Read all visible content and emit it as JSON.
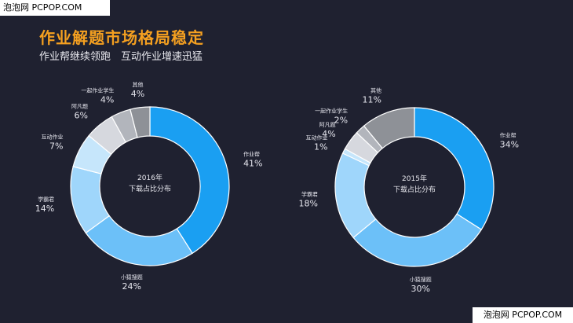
{
  "watermark_top": "泡泡网 PCPOP.COM",
  "watermark_bottom": "泡泡网 PCPOP.COM",
  "title": "作业解题市场格局稳定",
  "subtitle": "作业帮继续领跑　互动作业增速迅猛",
  "colors": {
    "background": "#1f2130",
    "title": "#f5a020"
  },
  "chart_data": [
    {
      "type": "pie",
      "variant": "donut",
      "center_label": [
        "2016年",
        "下载占比分布"
      ],
      "slices": [
        {
          "label": "作业帮",
          "value": 41,
          "display": "41%",
          "color": "#1a9ff2"
        },
        {
          "label": "小猿搜题",
          "value": 24,
          "display": "24%",
          "color": "#6cc0f8"
        },
        {
          "label": "学霸君",
          "value": 14,
          "display": "14%",
          "color": "#9fd6fb"
        },
        {
          "label": "互动作业",
          "value": 7,
          "display": "7%",
          "color": "#c6e6fb"
        },
        {
          "label": "阿凡题",
          "value": 6,
          "display": "6%",
          "color": "#d6d8de"
        },
        {
          "label": "一起作业学生",
          "value": 4,
          "display": "4%",
          "color": "#b2b5bc"
        },
        {
          "label": "其他",
          "value": 4,
          "display": "4%",
          "color": "#8e9197"
        }
      ]
    },
    {
      "type": "pie",
      "variant": "donut",
      "center_label": [
        "2015年",
        "下载占比分布"
      ],
      "slices": [
        {
          "label": "作业帮",
          "value": 34,
          "display": "34%",
          "color": "#1a9ff2"
        },
        {
          "label": "小猿搜题",
          "value": 30,
          "display": "30%",
          "color": "#6cc0f8"
        },
        {
          "label": "学霸君",
          "value": 18,
          "display": "18%",
          "color": "#9fd6fb"
        },
        {
          "label": "互动作业",
          "value": 1,
          "display": "1%",
          "color": "#c6e6fb"
        },
        {
          "label": "阿凡题",
          "value": 4,
          "display": "4%",
          "color": "#d6d8de"
        },
        {
          "label": "一起作业学生",
          "value": 2,
          "display": "2%",
          "color": "#b2b5bc"
        },
        {
          "label": "其他",
          "value": 11,
          "display": "11%",
          "color": "#8e9197"
        }
      ]
    }
  ]
}
